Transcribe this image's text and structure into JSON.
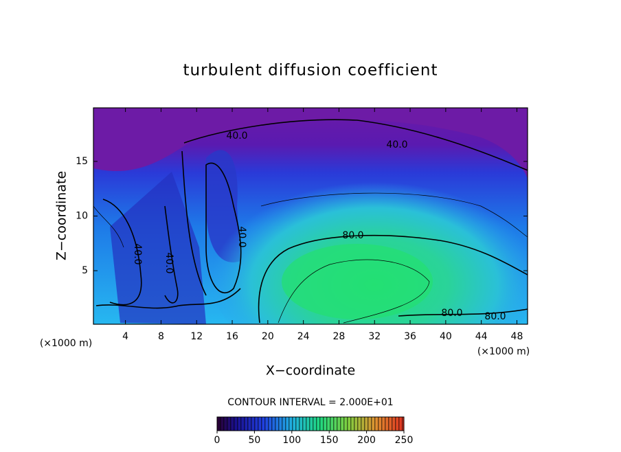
{
  "chart_data": {
    "type": "contour",
    "title": "turbulent diffusion coefficient",
    "xlabel": "X−coordinate",
    "ylabel": "Z−coordinate",
    "x_unit": "(×1000 m)",
    "y_unit": "(×1000 m)",
    "xlim": [
      0.4,
      49.2
    ],
    "xticks": [
      4,
      8,
      12,
      16,
      20,
      24,
      28,
      32,
      36,
      40,
      44,
      48
    ],
    "ylim": [
      0.1,
      19.9
    ],
    "yticks": [
      5,
      10,
      15
    ],
    "contour_interval_text": "CONTOUR INTERVAL = 2.000E+01",
    "contour_labels": [
      "40.0",
      "40.0",
      "40.0",
      "40.0",
      "40.0",
      "80.0",
      "80.0",
      "80.0"
    ],
    "colorbar": {
      "lim": [
        0,
        250
      ],
      "ticks": [
        0,
        50,
        100,
        150,
        200,
        250
      ]
    }
  }
}
